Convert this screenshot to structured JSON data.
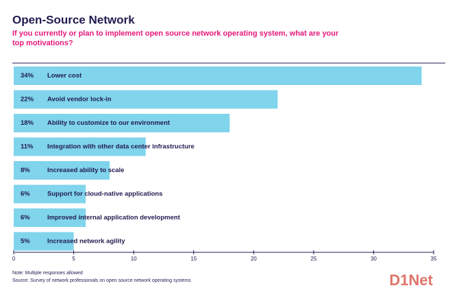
{
  "chart_data": {
    "type": "barh",
    "title": "Open-Source Network",
    "subtitle": "If you currently or plan to implement open source network operating system, what are your top motivations?",
    "categories": [
      "Lower cost",
      "Avoid vendor lock-in",
      "Ability to customize to our environment",
      "Integration with other data center infrastructure",
      "Increased ability to scale",
      "Support for cloud-native applications",
      "Improved internal application development",
      "Increased network agility"
    ],
    "values": [
      34,
      22,
      18,
      11,
      8,
      6,
      6,
      5
    ],
    "value_labels": [
      "34%",
      "22%",
      "18%",
      "11%",
      "8%",
      "6%",
      "6%",
      "5%"
    ],
    "color": "#80d4eb",
    "xlim": [
      0,
      35
    ],
    "xticks": [
      0,
      5,
      10,
      15,
      20,
      25,
      30,
      35
    ],
    "notes": [
      "Note: Multiple responses allowed",
      "Source: Survey of network professionals on open source network operating systems"
    ],
    "watermark": "D1Net"
  }
}
